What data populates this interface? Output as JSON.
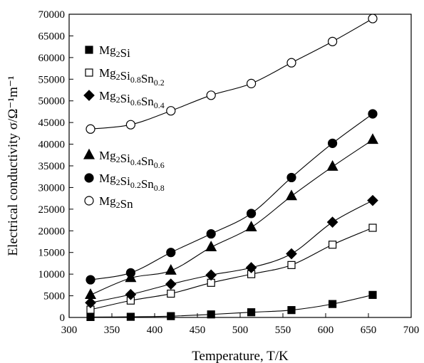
{
  "chart_data": {
    "type": "line",
    "title": "",
    "xlabel": "Temperature, T/K",
    "ylabel": "Electrical conductivity σ/Ω⁻¹m⁻¹",
    "xlim": [
      300,
      700
    ],
    "ylim": [
      0,
      70000
    ],
    "xticks": [
      300,
      350,
      400,
      450,
      500,
      550,
      600,
      650,
      700
    ],
    "yticks": [
      0,
      5000,
      10000,
      15000,
      20000,
      25000,
      30000,
      35000,
      40000,
      45000,
      50000,
      55000,
      60000,
      65000,
      70000
    ],
    "x": [
      325,
      372,
      419,
      466,
      513,
      560,
      608,
      655
    ],
    "grid": false,
    "legend_position": "left",
    "legend_groups": [
      [
        0,
        1,
        2
      ],
      [
        3,
        4,
        5
      ]
    ],
    "series": [
      {
        "name": "Mg2Si",
        "base": "Mg",
        "sub1": "2",
        "mid": "Si",
        "sub2": "",
        "tail": "",
        "sub3": "",
        "marker": "square-filled",
        "values": [
          100,
          150,
          300,
          700,
          1200,
          1700,
          3100,
          5200
        ]
      },
      {
        "name": "Mg2Si0.8Sn0.2",
        "base": "Mg",
        "sub1": "2",
        "mid": "Si",
        "sub2": "0.8",
        "tail": "Sn",
        "sub3": "0.2",
        "marker": "square-open",
        "values": [
          1800,
          3900,
          5500,
          8000,
          10000,
          12100,
          16800,
          20700
        ]
      },
      {
        "name": "Mg2Si0.6Sn0.4",
        "base": "Mg",
        "sub1": "2",
        "mid": "Si",
        "sub2": "0.6",
        "tail": "Sn",
        "sub3": "0.4",
        "marker": "diamond-filled",
        "values": [
          3400,
          5300,
          7700,
          9800,
          11500,
          14700,
          22000,
          27000
        ]
      },
      {
        "name": "Mg2Si0.4Sn0.6",
        "base": "Mg",
        "sub1": "2",
        "mid": "Si",
        "sub2": "0.4",
        "tail": "Sn",
        "sub3": "0.6",
        "marker": "triangle-filled",
        "values": [
          5200,
          9100,
          10800,
          16200,
          20800,
          28000,
          34800,
          41000
        ]
      },
      {
        "name": "Mg2Si0.2Sn0.8",
        "base": "Mg",
        "sub1": "2",
        "mid": "Si",
        "sub2": "0.2",
        "tail": "Sn",
        "sub3": "0.8",
        "marker": "circle-filled",
        "values": [
          8700,
          10300,
          15000,
          19300,
          24000,
          32300,
          40200,
          47000
        ]
      },
      {
        "name": "Mg2Sn",
        "base": "Mg",
        "sub1": "2",
        "mid": "Sn",
        "sub2": "",
        "tail": "",
        "sub3": "",
        "marker": "circle-open",
        "values": [
          43500,
          44500,
          47700,
          51300,
          54000,
          58800,
          63700,
          69000
        ]
      }
    ]
  }
}
